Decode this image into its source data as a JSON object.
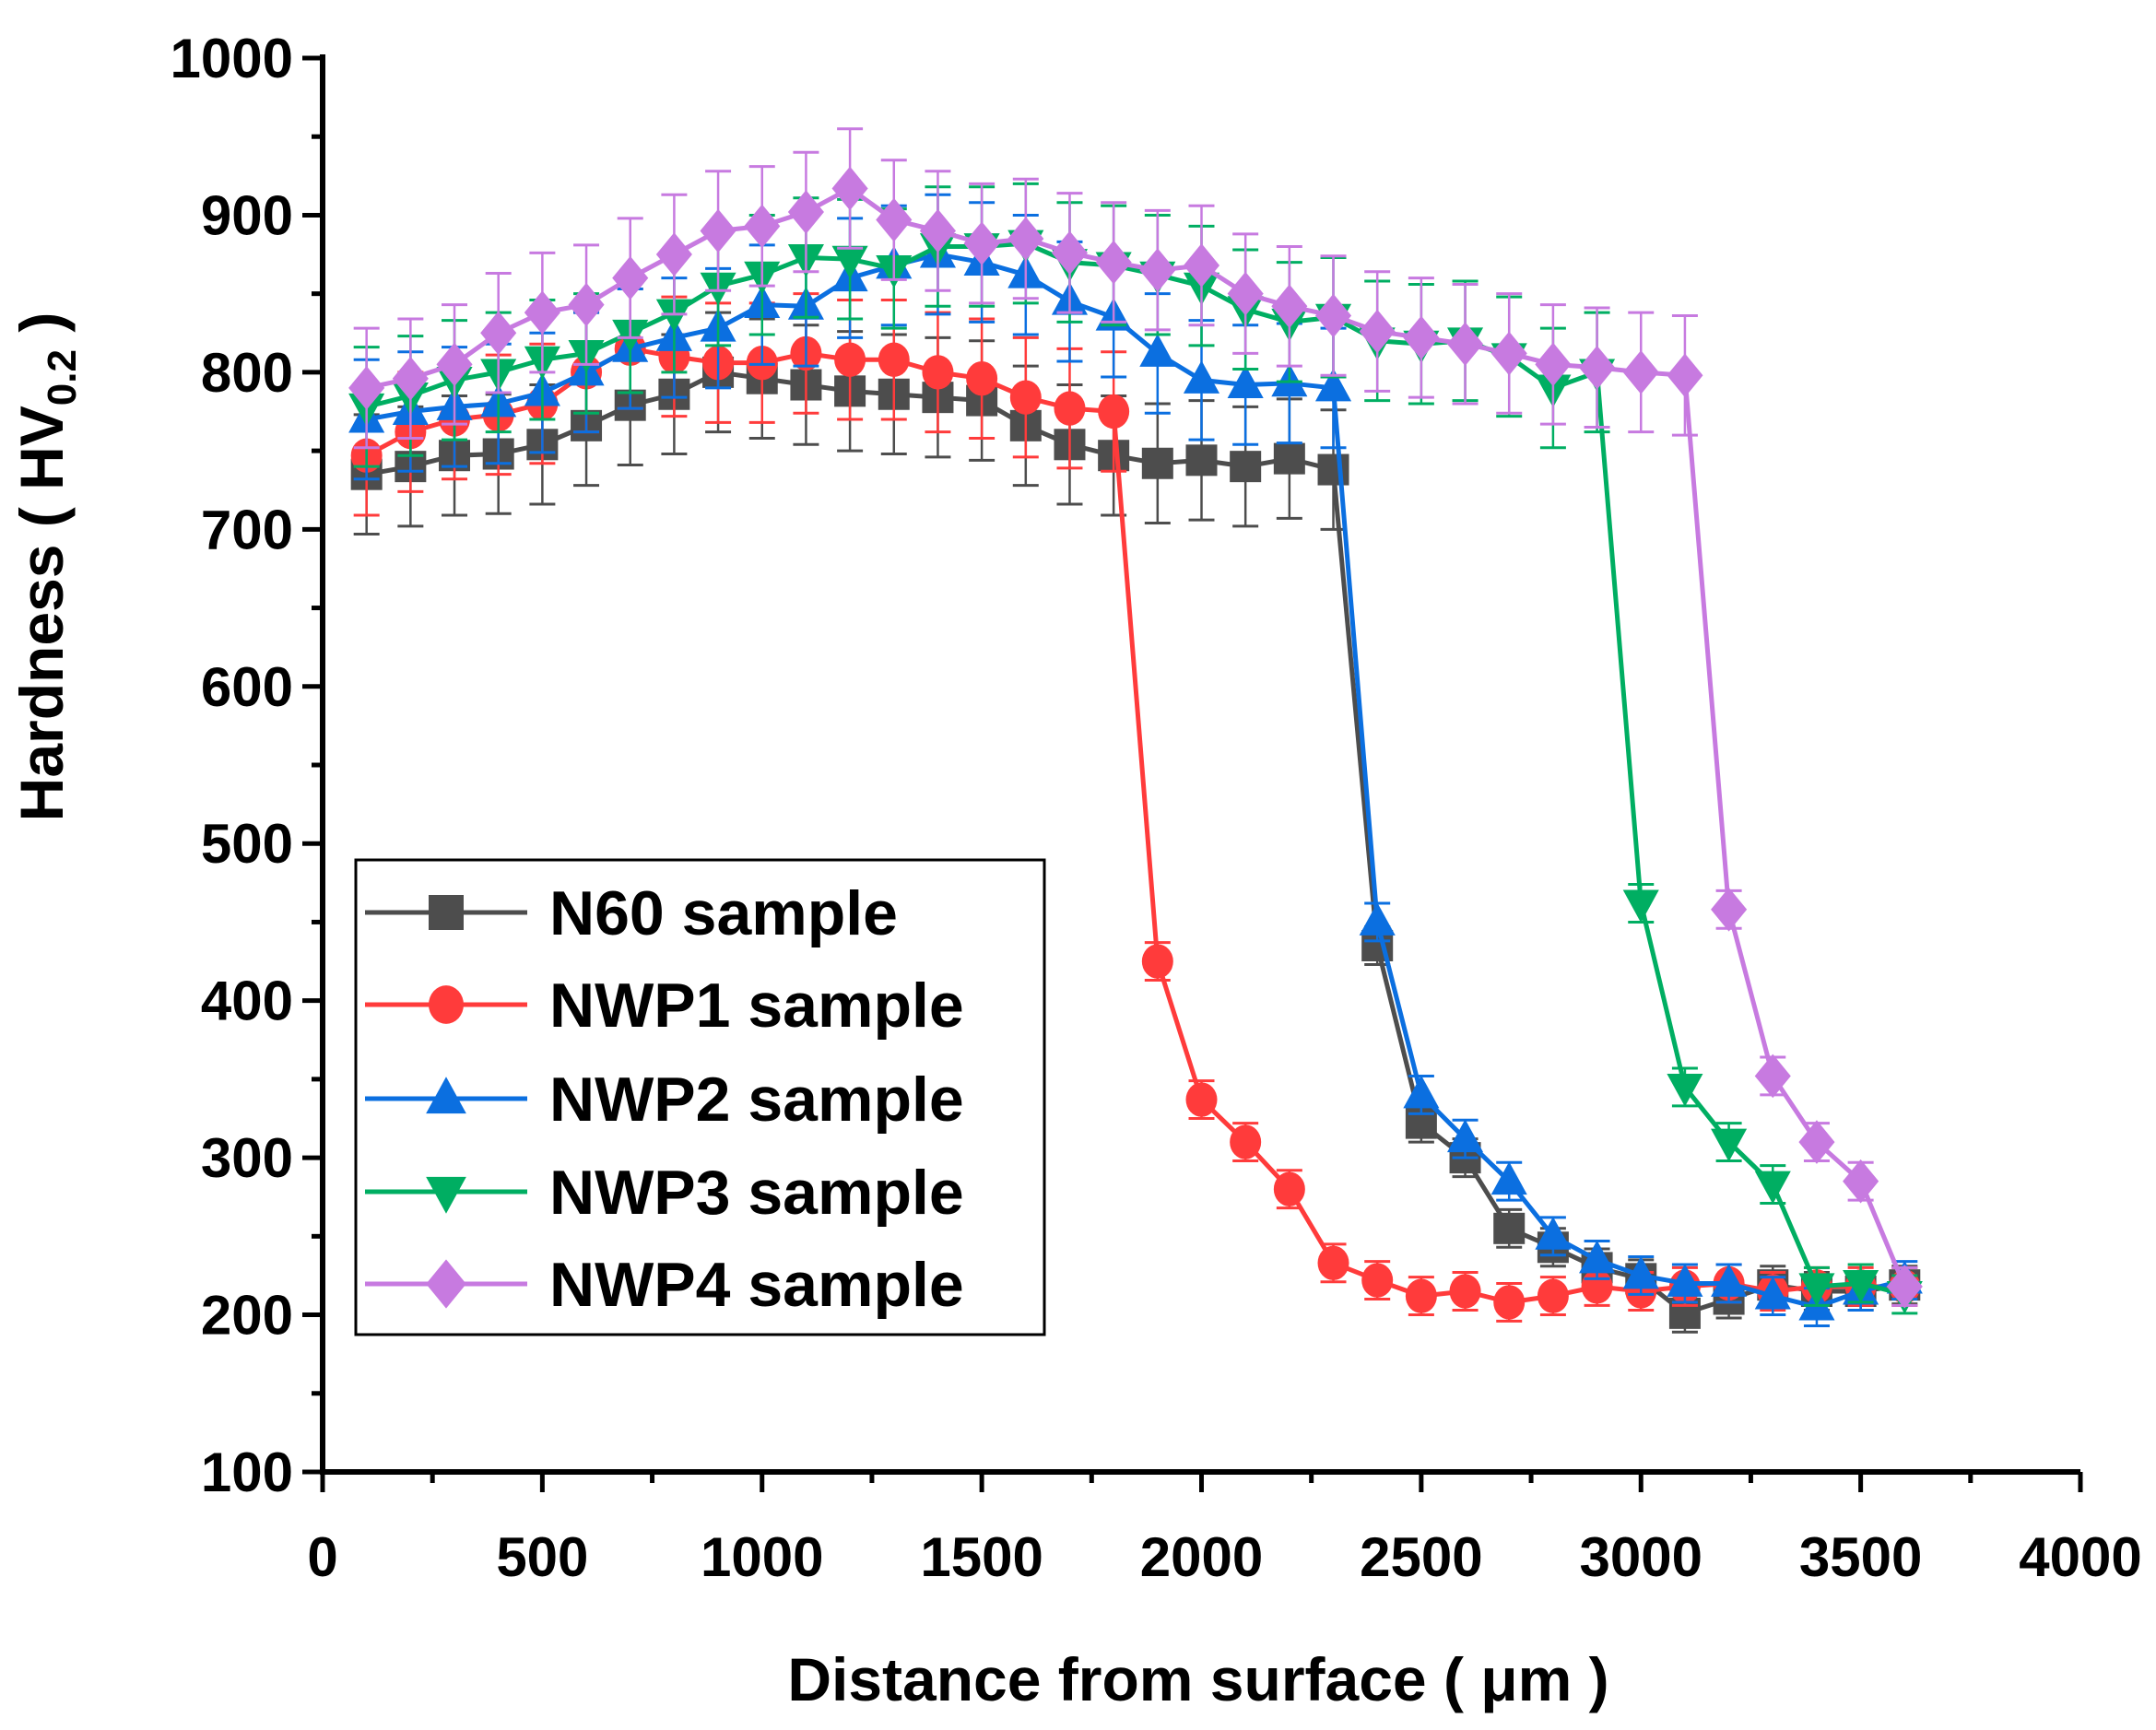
{
  "chart_data": {
    "type": "line",
    "title": "",
    "xlabel": "Distance from surface ( μm )",
    "ylabel_main": "Hardness ( HV",
    "ylabel_sub": "0.2",
    "ylabel_end": " )",
    "xlim": [
      0,
      4000
    ],
    "ylim": [
      100,
      1000
    ],
    "xticks": [
      "0",
      "500",
      "1000",
      "1500",
      "2000",
      "2500",
      "3000",
      "3500",
      "4000"
    ],
    "yticks": [
      "100",
      "200",
      "300",
      "400",
      "500",
      "600",
      "700",
      "800",
      "900",
      "1000"
    ],
    "grid": false,
    "legend_position": "bottom-left",
    "error_bar_note": {
      "plateau": 38,
      "core": 12
    },
    "series": [
      {
        "name": "N60 sample",
        "color": "#4d4d4d",
        "marker": "square",
        "x": [
          100,
          200,
          300,
          400,
          500,
          600,
          700,
          800,
          900,
          1000,
          1100,
          1200,
          1300,
          1400,
          1500,
          1600,
          1700,
          1800,
          1900,
          2000,
          2100,
          2200,
          2300,
          2400,
          2500,
          2600,
          2700,
          2800,
          2900,
          3000,
          3100,
          3200,
          3300,
          3400,
          3500,
          3600
        ],
        "y": [
          735,
          740,
          747,
          748,
          754,
          766,
          779,
          786,
          800,
          796,
          792,
          788,
          786,
          784,
          782,
          766,
          754,
          747,
          742,
          744,
          740,
          745,
          738,
          435,
          322,
          300,
          255,
          243,
          230,
          223,
          201,
          210,
          219,
          215,
          215,
          219
        ]
      },
      {
        "name": "NWP1 sample",
        "color": "#ff3b3b",
        "marker": "circle",
        "x": [
          100,
          200,
          300,
          400,
          500,
          600,
          700,
          800,
          900,
          1000,
          1100,
          1200,
          1300,
          1400,
          1500,
          1600,
          1700,
          1800,
          1900,
          2000,
          2100,
          2200,
          2300,
          2400,
          2500,
          2600,
          2700,
          2800,
          2900,
          3000,
          3100,
          3200,
          3300,
          3400,
          3500,
          3600
        ],
        "y": [
          747,
          762,
          770,
          773,
          780,
          800,
          815,
          810,
          806,
          806,
          812,
          808,
          808,
          800,
          796,
          784,
          777,
          775,
          425,
          337,
          310,
          280,
          233,
          222,
          212,
          215,
          208,
          212,
          218,
          215,
          218,
          220,
          215,
          218,
          218,
          218
        ]
      },
      {
        "name": "NWP2 sample",
        "color": "#0b6fe0",
        "marker": "triangle-up",
        "x": [
          100,
          200,
          300,
          400,
          500,
          600,
          700,
          800,
          900,
          1000,
          1100,
          1200,
          1300,
          1400,
          1500,
          1600,
          1700,
          1800,
          1900,
          2000,
          2100,
          2200,
          2300,
          2400,
          2500,
          2600,
          2700,
          2800,
          2900,
          3000,
          3100,
          3200,
          3300,
          3400,
          3500,
          3600
        ],
        "y": [
          770,
          775,
          778,
          780,
          787,
          800,
          815,
          822,
          828,
          843,
          842,
          860,
          868,
          875,
          870,
          862,
          845,
          835,
          812,
          795,
          792,
          793,
          790,
          450,
          340,
          312,
          285,
          250,
          235,
          225,
          220,
          220,
          212,
          205,
          215,
          222
        ]
      },
      {
        "name": "NWP3 sample",
        "color": "#00ae62",
        "marker": "triangle-down",
        "x": [
          100,
          200,
          300,
          400,
          500,
          600,
          700,
          800,
          900,
          1000,
          1100,
          1200,
          1300,
          1400,
          1500,
          1600,
          1700,
          1800,
          1900,
          2000,
          2100,
          2200,
          2300,
          2400,
          2500,
          2600,
          2700,
          2800,
          2900,
          3000,
          3100,
          3200,
          3300,
          3400,
          3500,
          3600
        ],
        "y": [
          778,
          785,
          795,
          800,
          808,
          812,
          825,
          838,
          855,
          862,
          873,
          872,
          866,
          880,
          880,
          882,
          870,
          868,
          862,
          855,
          840,
          832,
          835,
          820,
          818,
          820,
          810,
          790,
          800,
          462,
          345,
          310,
          283,
          218,
          220,
          213
        ]
      },
      {
        "name": "NWP4 sample",
        "color": "#c77ae0",
        "marker": "diamond",
        "x": [
          100,
          200,
          300,
          400,
          500,
          600,
          700,
          800,
          900,
          1000,
          1100,
          1200,
          1300,
          1400,
          1500,
          1600,
          1700,
          1800,
          1900,
          2000,
          2100,
          2200,
          2300,
          2400,
          2500,
          2600,
          2700,
          2800,
          2900,
          3000,
          3100,
          3200,
          3300,
          3400,
          3500,
          3600
        ],
        "y": [
          790,
          796,
          805,
          825,
          838,
          843,
          860,
          875,
          890,
          893,
          902,
          917,
          897,
          890,
          882,
          885,
          876,
          870,
          865,
          868,
          850,
          842,
          836,
          826,
          822,
          818,
          812,
          805,
          803,
          800,
          798,
          458,
          352,
          310,
          285,
          218
        ]
      }
    ]
  }
}
